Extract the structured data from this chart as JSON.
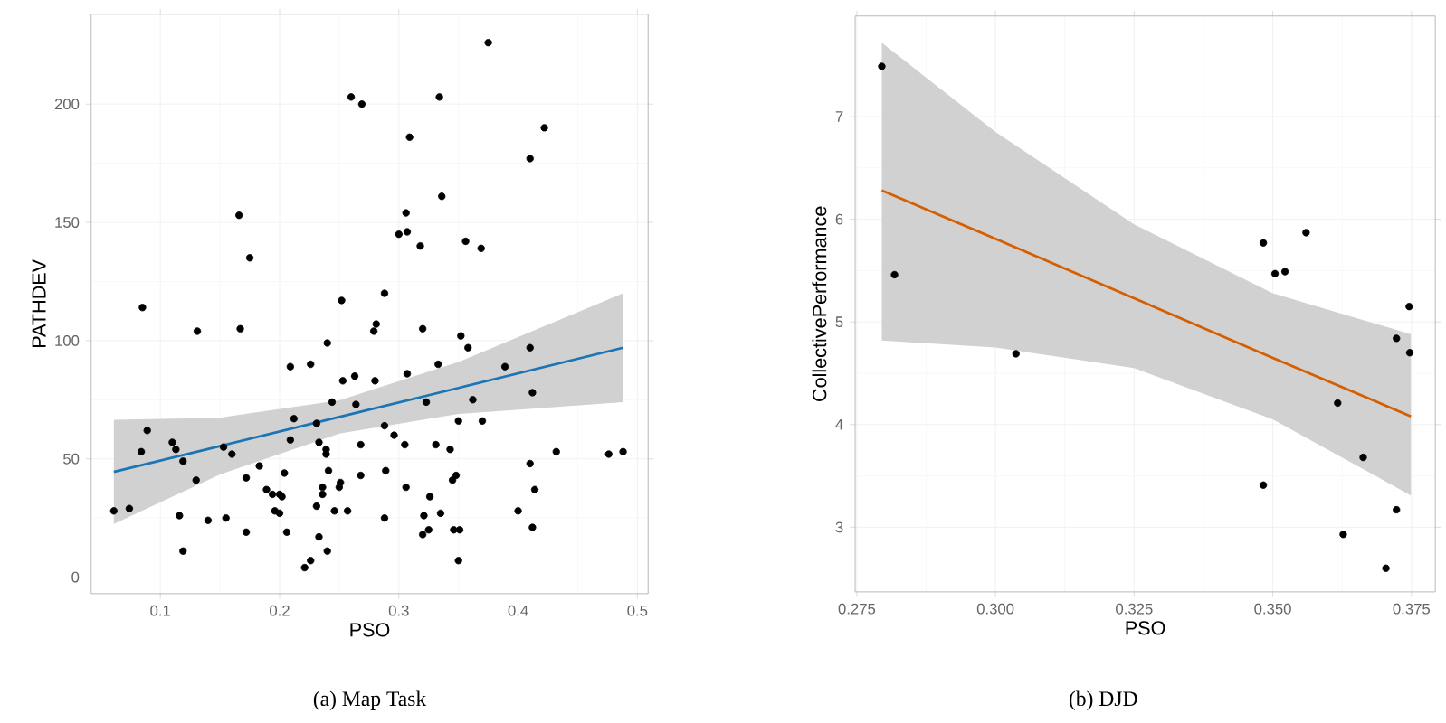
{
  "chart_data": [
    {
      "type": "scatter",
      "title": "(a) Map Task",
      "xlabel": "PSO",
      "ylabel": "PATHDEV",
      "xlim": [
        0.042,
        0.509
      ],
      "ylim": [
        -7,
        238
      ],
      "xticks": [
        0.1,
        0.2,
        0.3,
        0.4,
        0.5
      ],
      "yticks": [
        0,
        50,
        100,
        150,
        200
      ],
      "grid": true,
      "series": [
        {
          "marker": "circle",
          "color": "#000000",
          "x": [
            0.26,
            0.269,
            0.085,
            0.166,
            0.175,
            0.131,
            0.167,
            0.252,
            0.281,
            0.24,
            0.209,
            0.226,
            0.253,
            0.263,
            0.28,
            0.244,
            0.212,
            0.264,
            0.209,
            0.231,
            0.233,
            0.268,
            0.239,
            0.239,
            0.084,
            0.089,
            0.11,
            0.113,
            0.119,
            0.153,
            0.16,
            0.183,
            0.172,
            0.204,
            0.241,
            0.268,
            0.13,
            0.189,
            0.194,
            0.2,
            0.202,
            0.236,
            0.236,
            0.25,
            0.251,
            0.061,
            0.074,
            0.196,
            0.2,
            0.231,
            0.246,
            0.257,
            0.116,
            0.14,
            0.155,
            0.172,
            0.206,
            0.233,
            0.119,
            0.24,
            0.226,
            0.221,
            0.375,
            0.334,
            0.422,
            0.309,
            0.41,
            0.336,
            0.306,
            0.3,
            0.307,
            0.318,
            0.356,
            0.369,
            0.288,
            0.279,
            0.32,
            0.352,
            0.358,
            0.41,
            0.389,
            0.333,
            0.307,
            0.323,
            0.362,
            0.412,
            0.288,
            0.296,
            0.305,
            0.331,
            0.343,
            0.35,
            0.37,
            0.432,
            0.476,
            0.488,
            0.41,
            0.289,
            0.348,
            0.345,
            0.306,
            0.326,
            0.414,
            0.288,
            0.321,
            0.335,
            0.4,
            0.325,
            0.32,
            0.346,
            0.351,
            0.412,
            0.35
          ],
          "values": [
            203,
            200,
            114,
            153,
            135,
            104,
            105,
            117,
            107,
            99,
            89,
            90,
            83,
            85,
            83,
            74,
            67,
            73,
            58,
            65,
            57,
            56,
            54,
            52,
            53,
            62,
            57,
            54,
            49,
            55,
            52,
            47,
            42,
            44,
            45,
            43,
            41,
            37,
            35,
            35,
            34,
            38,
            35,
            38,
            40,
            28,
            29,
            28,
            27,
            30,
            28,
            28,
            26,
            24,
            25,
            19,
            19,
            17,
            11,
            11,
            7,
            4,
            226,
            203,
            190,
            186,
            177,
            161,
            154,
            145,
            146,
            140,
            142,
            139,
            120,
            104,
            105,
            102,
            97,
            97,
            89,
            90,
            86,
            74,
            75,
            78,
            64,
            60,
            56,
            56,
            54,
            66,
            66,
            53,
            52,
            53,
            48,
            45,
            43,
            41,
            38,
            34,
            37,
            25,
            26,
            27,
            28,
            20,
            18,
            20,
            20,
            21,
            7
          ]
        },
        {
          "type": "line",
          "color": "#1b75b5",
          "x": [
            0.061,
            0.15,
            0.25,
            0.35,
            0.488
          ],
          "values": [
            44.5,
            55.4,
            67.7,
            80,
            97
          ],
          "lower": [
            22.5,
            43.4,
            60.7,
            69,
            74
          ],
          "upper": [
            66.5,
            67.4,
            74.7,
            91,
            120
          ]
        }
      ]
    },
    {
      "type": "scatter",
      "title": "(b) DJD",
      "xlabel": "PSO",
      "ylabel": "CollectivePerformance",
      "xlim": [
        0.2747,
        0.3793
      ],
      "ylim": [
        2.37,
        7.98
      ],
      "xticks": [
        {
          "value": 0.275,
          "label": "0.275"
        },
        {
          "value": 0.3,
          "label": "0.300"
        },
        {
          "value": 0.325,
          "label": "0.325"
        },
        {
          "value": 0.35,
          "label": "0.350"
        },
        {
          "value": 0.375,
          "label": "0.375"
        }
      ],
      "yticks": [
        3,
        4,
        5,
        6,
        7
      ],
      "grid": true,
      "series": [
        {
          "marker": "circle",
          "color": "#000000",
          "x": [
            0.2795,
            0.2818,
            0.3037,
            0.3483,
            0.3504,
            0.3522,
            0.356,
            0.3483,
            0.3617,
            0.3627,
            0.3663,
            0.3704,
            0.3723,
            0.3723,
            0.3747,
            0.3746
          ],
          "values": [
            7.49,
            5.46,
            4.69,
            5.77,
            5.47,
            5.49,
            5.87,
            3.41,
            4.21,
            2.93,
            3.68,
            2.6,
            3.17,
            4.84,
            4.7,
            5.15
          ]
        },
        {
          "type": "line",
          "color": "#d55e00",
          "x": [
            0.2795,
            0.3,
            0.325,
            0.35,
            0.3749
          ],
          "values": [
            6.28,
            5.81,
            5.23,
            4.65,
            4.08
          ],
          "lower": [
            4.82,
            4.75,
            4.55,
            4.05,
            3.31
          ],
          "upper": [
            7.72,
            6.85,
            5.95,
            5.28,
            4.88
          ]
        }
      ]
    }
  ]
}
